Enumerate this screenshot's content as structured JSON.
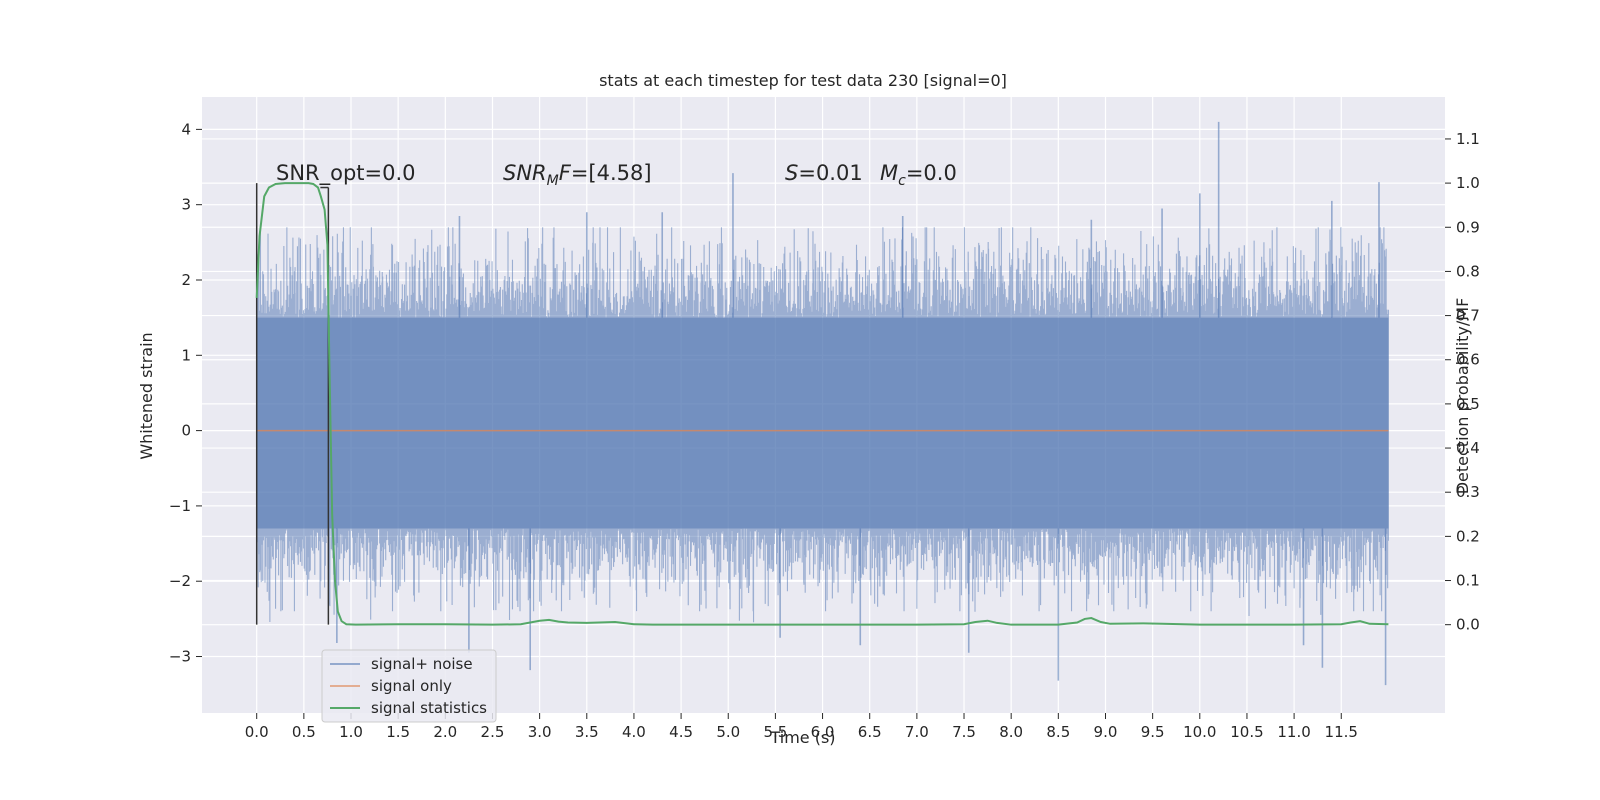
{
  "chart_data": {
    "type": "line",
    "title": "stats at each timestep for test data 230 [signal=0]",
    "xlabel": "Time (s)",
    "ylabel": "Whitened strain",
    "y2label": "Detection probability/MF",
    "xlim": [
      -0.58,
      12.6
    ],
    "ylim": [
      -3.75,
      4.43
    ],
    "y2lim": [
      -0.2,
      1.195
    ],
    "x_ticks": [
      0.0,
      0.5,
      1.0,
      1.5,
      2.0,
      2.5,
      3.0,
      3.5,
      4.0,
      4.5,
      5.0,
      5.5,
      6.0,
      6.5,
      7.0,
      7.5,
      8.0,
      8.5,
      9.0,
      9.5,
      10.0,
      10.5,
      11.0,
      11.5
    ],
    "x_tick_labels": [
      "0.0",
      "0.5",
      "1.0",
      "1.5",
      "2.0",
      "2.5",
      "3.0",
      "3.5",
      "4.0",
      "4.5",
      "5.0",
      "5.5",
      "6.0",
      "6.5",
      "7.0",
      "7.5",
      "8.0",
      "8.5",
      "9.0",
      "9.5",
      "10.0",
      "10.5",
      "11.0",
      "11.5"
    ],
    "y_ticks": [
      4,
      3,
      2,
      1,
      0,
      -1,
      -2,
      -3
    ],
    "y_tick_labels": [
      "4",
      "3",
      "2",
      "1",
      "0",
      "−1",
      "−2",
      "−3"
    ],
    "y2_ticks": [
      1.1,
      1.0,
      0.9,
      0.8,
      0.7,
      0.6,
      0.5,
      0.4,
      0.3,
      0.2,
      0.1,
      0.0
    ],
    "y2_tick_labels": [
      "1.1",
      "1.0",
      "0.9",
      "0.8",
      "0.7",
      "0.6",
      "0.5",
      "0.4",
      "0.3",
      "0.2",
      "0.1",
      "0.0"
    ],
    "grid": true,
    "legend_position": "lower-left",
    "legend": [
      "signal+ noise",
      "signal only",
      "signal statistics"
    ],
    "annotations": {
      "snr_opt": "SNR_opt=0.0",
      "snr_mf_base": "SNR",
      "snr_mf_sub": "M",
      "snr_mf_tail": "F",
      "snr_mf_value": "=[4.58]",
      "s_label": "S",
      "s_value": "=0.01",
      "mc_label": "M",
      "mc_sub": "c",
      "mc_value": "=0.0"
    },
    "colors": {
      "background": "#eaeaf2",
      "grid": "#ffffff",
      "noise": "#4c72b0",
      "signal": "#dd8452",
      "stat": "#55a868",
      "marker": "#333333"
    },
    "series": [
      {
        "name": "signal+ noise",
        "axis": "left",
        "x_range": [
          0.0,
          12.0
        ],
        "core_band": [
          -1.3,
          1.5
        ],
        "envelope_typical": [
          -2.0,
          2.2
        ],
        "peaks": [
          {
            "x": 10.2,
            "y": 4.1
          },
          {
            "x": 5.05,
            "y": 3.42
          },
          {
            "x": 11.9,
            "y": 3.3
          },
          {
            "x": 10.0,
            "y": 3.15
          },
          {
            "x": 11.4,
            "y": 3.05
          },
          {
            "x": 2.15,
            "y": 2.85
          },
          {
            "x": 9.6,
            "y": 2.95
          },
          {
            "x": 6.85,
            "y": 2.85
          },
          {
            "x": 8.85,
            "y": 2.8
          },
          {
            "x": 3.5,
            "y": 2.9
          },
          {
            "x": 4.3,
            "y": 2.9
          },
          {
            "x": 8.5,
            "y": -3.32
          },
          {
            "x": 11.97,
            "y": -3.38
          },
          {
            "x": 2.9,
            "y": -3.18
          },
          {
            "x": 11.3,
            "y": -3.15
          },
          {
            "x": 2.25,
            "y": -2.95
          },
          {
            "x": 0.85,
            "y": -2.82
          },
          {
            "x": 7.55,
            "y": -2.95
          },
          {
            "x": 6.4,
            "y": -2.85
          },
          {
            "x": 5.55,
            "y": -2.75
          },
          {
            "x": 11.1,
            "y": -2.85
          }
        ]
      },
      {
        "name": "signal only",
        "axis": "left",
        "x": [
          0.0,
          12.0
        ],
        "y": [
          0.0,
          0.0
        ]
      },
      {
        "name": "signal statistics",
        "axis": "right",
        "x": [
          0.0,
          0.03,
          0.08,
          0.13,
          0.2,
          0.3,
          0.4,
          0.5,
          0.55,
          0.6,
          0.65,
          0.68,
          0.72,
          0.75,
          0.77,
          0.8,
          0.83,
          0.86,
          0.9,
          0.95,
          1.05,
          1.5,
          2.0,
          2.5,
          2.8,
          3.0,
          3.1,
          3.2,
          3.3,
          3.5,
          3.8,
          4.0,
          4.2,
          5.0,
          6.0,
          7.0,
          7.5,
          7.62,
          7.75,
          7.85,
          8.0,
          8.5,
          8.7,
          8.78,
          8.85,
          8.95,
          9.05,
          9.4,
          9.6,
          10.0,
          11.0,
          11.5,
          11.6,
          11.7,
          11.8,
          12.0
        ],
        "y": [
          0.74,
          0.88,
          0.97,
          0.99,
          0.998,
          1.0,
          1.0,
          1.0,
          1.0,
          0.998,
          0.99,
          0.97,
          0.94,
          0.86,
          0.6,
          0.25,
          0.1,
          0.03,
          0.008,
          0.001,
          0.0,
          0.001,
          0.001,
          0.0,
          0.001,
          0.009,
          0.011,
          0.007,
          0.005,
          0.004,
          0.006,
          0.001,
          0.0,
          0.0,
          0.0,
          0.0,
          0.001,
          0.006,
          0.009,
          0.004,
          0.0,
          0.0,
          0.005,
          0.013,
          0.015,
          0.006,
          0.002,
          0.003,
          0.002,
          0.0,
          0.0,
          0.001,
          0.005,
          0.008,
          0.002,
          0.001
        ]
      }
    ],
    "markers": [
      {
        "x": 0.0,
        "y_bottom": 0.0,
        "y_top": 1.0
      },
      {
        "x": 0.76,
        "y_bottom": 0.0,
        "y_top": 0.99
      }
    ]
  }
}
